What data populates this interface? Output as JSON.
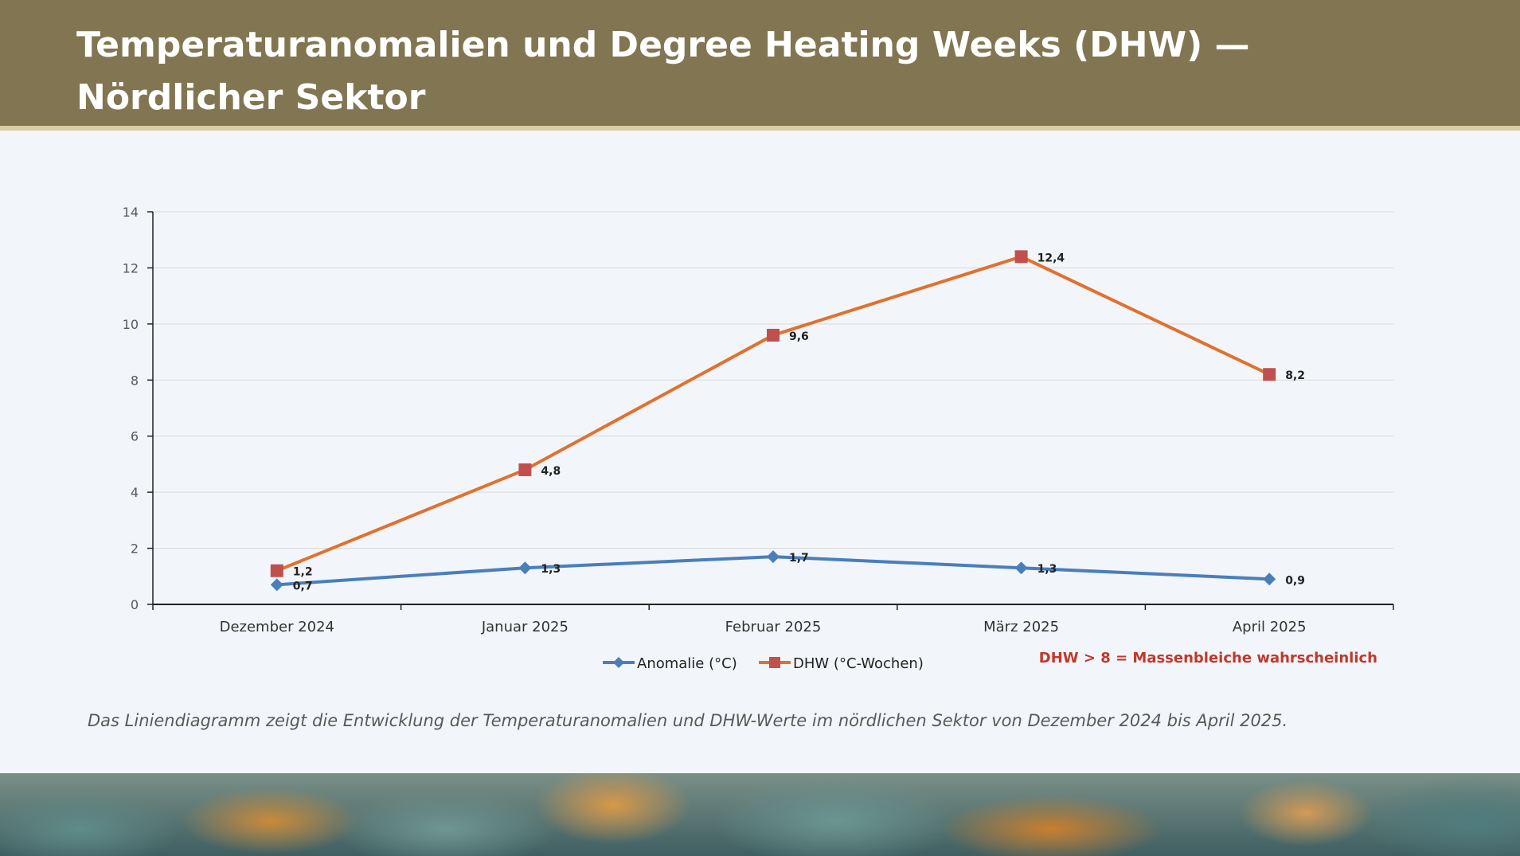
{
  "header": {
    "title": "Temperaturanomalien und Degree Heating Weeks (DHW) — Nördlicher Sektor"
  },
  "chart_data": {
    "type": "line",
    "categories": [
      "Dezember 2024",
      "Januar 2025",
      "Februar 2025",
      "März 2025",
      "April 2025"
    ],
    "series": [
      {
        "name": "Anomalie (°C)",
        "values": [
          0.7,
          1.3,
          1.7,
          1.3,
          0.9
        ],
        "labels": [
          "0,7",
          "1,3",
          "1,7",
          "1,3",
          "0,9"
        ],
        "line_color": "#4a7ebb",
        "marker_color": "#4a7ebb",
        "marker": "diamond"
      },
      {
        "name": "DHW (°C-Wochen)",
        "values": [
          1.2,
          4.8,
          9.6,
          12.4,
          8.2
        ],
        "labels": [
          "1,2",
          "4,8",
          "9,6",
          "12,4",
          "8,2"
        ],
        "line_color": "#e0712f",
        "marker_color": "#c0504d",
        "marker": "square"
      }
    ],
    "ylim": [
      0,
      14
    ],
    "yticks": [
      0,
      2,
      4,
      6,
      8,
      10,
      12,
      14
    ],
    "grid": true,
    "legend_position": "bottom-center"
  },
  "callout": {
    "text": "DHW > 8 = Massenbleiche wahrscheinlich",
    "color": "#c0392b"
  },
  "caption": "Das Liniendiagramm zeigt die Entwicklung der Temperaturanomalien und DHW-Werte im nördlichen Sektor von Dezember 2024 bis April 2025."
}
